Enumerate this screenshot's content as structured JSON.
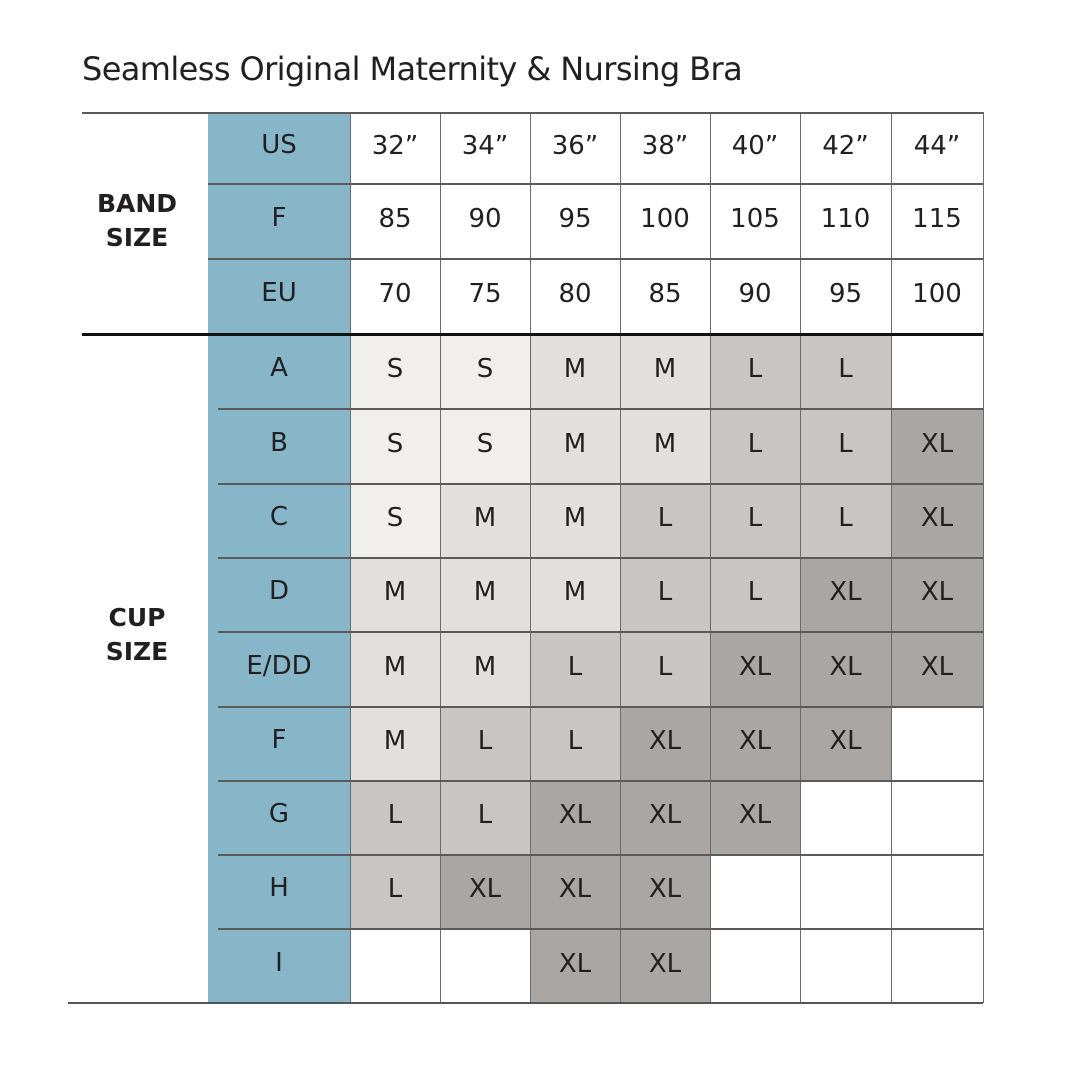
{
  "title": "Seamless Original Maternity & Nursing Bra",
  "band_section_label": [
    "BAND",
    "SIZE"
  ],
  "cup_section_label": [
    "CUP",
    "SIZE"
  ],
  "colors": {
    "label_column": "#86b6c7",
    "S": "#f1efed",
    "M": "#e3dfdc",
    "L": "#c9c5c2",
    "XL": "#aaa6a4",
    "empty": "#ffffff"
  },
  "band_rows": [
    {
      "label": "US",
      "values": [
        "32”",
        "34”",
        "36”",
        "38”",
        "40”",
        "42”",
        "44”"
      ]
    },
    {
      "label": "F",
      "values": [
        "85",
        "90",
        "95",
        "100",
        "105",
        "110",
        "115"
      ]
    },
    {
      "label": "EU",
      "values": [
        "70",
        "75",
        "80",
        "85",
        "90",
        "95",
        "100"
      ]
    }
  ],
  "cup_rows": [
    {
      "label": "A",
      "values": [
        "S",
        "S",
        "M",
        "M",
        "L",
        "L",
        ""
      ]
    },
    {
      "label": "B",
      "values": [
        "S",
        "S",
        "M",
        "M",
        "L",
        "L",
        "XL"
      ]
    },
    {
      "label": "C",
      "values": [
        "S",
        "M",
        "M",
        "L",
        "L",
        "L",
        "XL"
      ]
    },
    {
      "label": "D",
      "values": [
        "M",
        "M",
        "M",
        "L",
        "L",
        "XL",
        "XL"
      ]
    },
    {
      "label": "E/DD",
      "values": [
        "M",
        "M",
        "L",
        "L",
        "XL",
        "XL",
        "XL"
      ]
    },
    {
      "label": "F",
      "values": [
        "M",
        "L",
        "L",
        "XL",
        "XL",
        "XL",
        ""
      ]
    },
    {
      "label": "G",
      "values": [
        "L",
        "L",
        "XL",
        "XL",
        "XL",
        "",
        ""
      ]
    },
    {
      "label": "H",
      "values": [
        "L",
        "XL",
        "XL",
        "XL",
        "",
        "",
        ""
      ]
    },
    {
      "label": "I",
      "values": [
        "",
        "",
        "XL",
        "XL",
        "",
        "",
        ""
      ]
    }
  ]
}
